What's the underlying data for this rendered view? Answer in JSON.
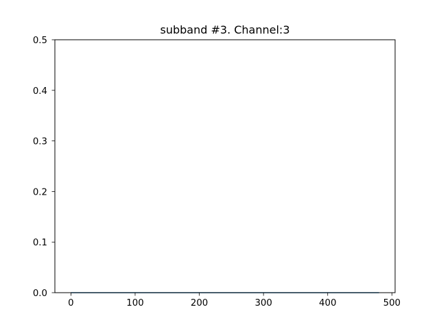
{
  "chart_data": {
    "type": "line",
    "title": "subband #3. Channel:3",
    "xlabel": "",
    "ylabel": "",
    "xlim": [
      -25,
      505
    ],
    "ylim": [
      0,
      0.5
    ],
    "x_ticks": [
      0,
      100,
      200,
      300,
      400,
      500
    ],
    "y_ticks": [
      0.0,
      0.1,
      0.2,
      0.3,
      0.4,
      0.5
    ],
    "x_tick_labels": [
      "0",
      "100",
      "200",
      "300",
      "400",
      "500"
    ],
    "y_tick_labels": [
      "0.0",
      "0.1",
      "0.2",
      "0.3",
      "0.4",
      "0.5"
    ],
    "grid": false,
    "series": [
      {
        "color": "#1f77b4",
        "x": [
          0,
          480
        ],
        "y": [
          0.0,
          0.0
        ]
      }
    ]
  }
}
